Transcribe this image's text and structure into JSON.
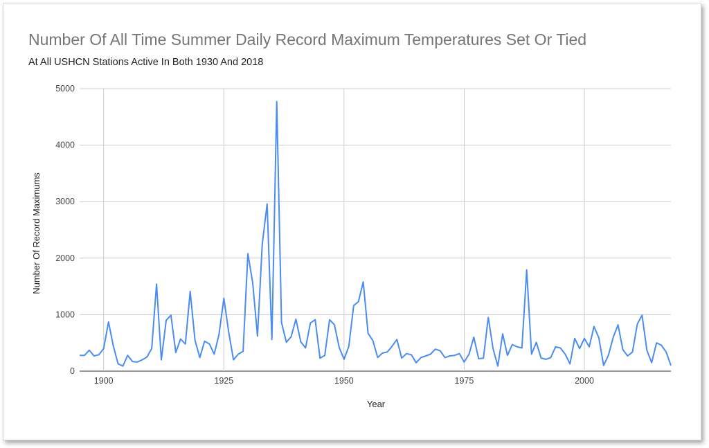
{
  "chart_data": {
    "type": "line",
    "title": "Number Of All Time Summer Daily Record Maximum Temperatures Set Or Tied",
    "subtitle": "At All USHCN Stations Active In Both 1930 And 2018",
    "xlabel": "Year",
    "ylabel": "Number Of Record Maximums",
    "xlim": [
      1895,
      2018
    ],
    "ylim": [
      0,
      5000
    ],
    "xticks": [
      1900,
      1925,
      1950,
      1975,
      2000
    ],
    "yticks": [
      0,
      1000,
      2000,
      3000,
      4000,
      5000
    ],
    "grid": true,
    "legend": "none",
    "line_color": "#4a8cf0",
    "series": [
      {
        "x": [
          1895,
          1896,
          1897,
          1898,
          1899,
          1900,
          1901,
          1902,
          1903,
          1904,
          1905,
          1906,
          1907,
          1908,
          1909,
          1910,
          1911,
          1912,
          1913,
          1914,
          1915,
          1916,
          1917,
          1918,
          1919,
          1920,
          1921,
          1922,
          1923,
          1924,
          1925,
          1926,
          1927,
          1928,
          1929,
          1930,
          1931,
          1932,
          1933,
          1934,
          1935,
          1936,
          1937,
          1938,
          1939,
          1940,
          1941,
          1942,
          1943,
          1944,
          1945,
          1946,
          1947,
          1948,
          1949,
          1950,
          1951,
          1952,
          1953,
          1954,
          1955,
          1956,
          1957,
          1958,
          1959,
          1960,
          1961,
          1962,
          1963,
          1964,
          1965,
          1966,
          1967,
          1968,
          1969,
          1970,
          1971,
          1972,
          1973,
          1974,
          1975,
          1976,
          1977,
          1978,
          1979,
          1980,
          1981,
          1982,
          1983,
          1984,
          1985,
          1986,
          1987,
          1988,
          1989,
          1990,
          1991,
          1992,
          1993,
          1994,
          1995,
          1996,
          1997,
          1998,
          1999,
          2000,
          2001,
          2002,
          2003,
          2004,
          2005,
          2006,
          2007,
          2008,
          2009,
          2010,
          2011,
          2012,
          2013,
          2014,
          2015,
          2016,
          2017,
          2018
        ],
        "values": [
          280,
          280,
          370,
          270,
          290,
          400,
          870,
          450,
          130,
          90,
          280,
          170,
          160,
          200,
          250,
          400,
          1540,
          200,
          900,
          990,
          330,
          570,
          480,
          1410,
          550,
          240,
          530,
          480,
          300,
          650,
          1290,
          700,
          200,
          300,
          350,
          2080,
          1560,
          620,
          2250,
          2960,
          560,
          4770,
          860,
          510,
          610,
          920,
          520,
          410,
          850,
          910,
          230,
          280,
          910,
          820,
          420,
          210,
          440,
          1160,
          1230,
          1580,
          670,
          540,
          240,
          320,
          340,
          440,
          560,
          230,
          310,
          290,
          150,
          240,
          270,
          300,
          390,
          360,
          240,
          270,
          280,
          310,
          160,
          300,
          600,
          220,
          230,
          950,
          400,
          90,
          660,
          280,
          470,
          430,
          410,
          1790,
          300,
          510,
          230,
          210,
          240,
          430,
          410,
          300,
          130,
          580,
          400,
          580,
          430,
          790,
          590,
          100,
          280,
          600,
          820,
          380,
          270,
          340,
          830,
          990,
          370,
          150,
          500,
          460,
          340,
          100
        ]
      }
    ]
  }
}
